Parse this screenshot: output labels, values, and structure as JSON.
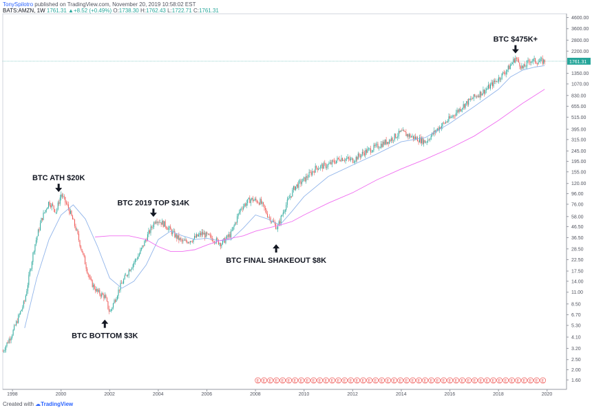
{
  "header": {
    "author": "TonySpilotro",
    "published": "published on TradingView.com, November 20, 2019 10:58:02 EST",
    "symbol": "BATS:AMZN, 1W",
    "last": "1761.31",
    "change_arrow": "▲",
    "change": "+8.52 (+0.49%)",
    "o_label": "O:",
    "o_val": "1738.30",
    "h_label": "H:",
    "h_val": "1762.43",
    "l_label": "L:",
    "l_val": "1722.71",
    "c_label": "C:",
    "c_val": "1761.31"
  },
  "footer": {
    "created": "Created with",
    "brand": "TradingView"
  },
  "colors": {
    "up": "#26a69a",
    "down": "#ef5350",
    "ma_fast": "#90b4ea",
    "ma_slow": "#f06cf0",
    "price_line": "#26a69a"
  },
  "chart_data": {
    "type": "line",
    "title": "",
    "xlabel": "",
    "ylabel": "",
    "log_scale": true,
    "ylim": [
      1.3,
      5000
    ],
    "xlim": [
      1997.6,
      2020.8
    ],
    "x_ticks": [
      "1998",
      "2000",
      "2002",
      "2004",
      "2006",
      "2008",
      "2010",
      "2012",
      "2014",
      "2016",
      "2018",
      "2020"
    ],
    "y_ticks": [
      "4600.00",
      "3600.00",
      "2800.00",
      "2200.00",
      "1761.31",
      "1350.00",
      "1070.00",
      "830.00",
      "655.00",
      "515.00",
      "395.00",
      "315.00",
      "245.00",
      "195.00",
      "155.00",
      "120.00",
      "96.00",
      "76.00",
      "58.00",
      "46.50",
      "36.50",
      "28.50",
      "22.50",
      "17.50",
      "14.00",
      "11.00",
      "8.50",
      "6.70",
      "5.30",
      "4.10",
      "3.20",
      "2.50",
      "2.00",
      "1.60"
    ],
    "current_price": 1761.31,
    "current_price_label": "1761.31",
    "series": [
      {
        "values_x": [
          1997.6,
          1998.0,
          1998.5,
          1998.9,
          1999.2,
          1999.5,
          1999.8,
          2000.0,
          2000.3,
          2000.6,
          2000.9,
          2001.2,
          2001.5,
          2001.8,
          2002.0,
          2002.4,
          2002.8,
          2003.2,
          2003.6,
          2003.9,
          2004.3,
          2004.7,
          2005.0,
          2005.4,
          2005.8,
          2006.2,
          2006.6,
          2007.0,
          2007.4,
          2007.8,
          2008.2,
          2008.5,
          2008.9,
          2009.2,
          2009.6,
          2010.0,
          2010.5,
          2011.0,
          2011.5,
          2012.0,
          2012.5,
          2013.0,
          2013.5,
          2014.0,
          2014.5,
          2015.0,
          2015.5,
          2016.0,
          2016.5,
          2017.0,
          2017.5,
          2018.0,
          2018.4,
          2018.7,
          2019.0,
          2019.3,
          2019.6,
          2019.9
        ],
        "values": [
          3.0,
          4.5,
          9,
          30,
          55,
          80,
          65,
          95,
          70,
          45,
          25,
          14,
          11,
          10,
          7,
          12,
          18,
          25,
          40,
          55,
          48,
          38,
          33,
          35,
          40,
          36,
          32,
          40,
          70,
          85,
          80,
          60,
          45,
          70,
          110,
          130,
          170,
          180,
          210,
          200,
          240,
          270,
          310,
          370,
          330,
          300,
          400,
          500,
          650,
          800,
          950,
          1200,
          1500,
          1900,
          1500,
          1800,
          1750,
          1761.31
        ]
      },
      {
        "values_x": [
          1998.5,
          1999.0,
          1999.5,
          2000.0,
          2000.5,
          2001.0,
          2001.5,
          2002.0,
          2002.5,
          2003.0,
          2003.5,
          2004.0,
          2004.5,
          2005.0,
          2005.5,
          2006.0,
          2006.5,
          2007.0,
          2007.5,
          2008.0,
          2008.5,
          2009.0,
          2009.5,
          2010.0,
          2011.0,
          2012.0,
          2013.0,
          2014.0,
          2015.0,
          2016.0,
          2017.0,
          2018.0,
          2018.5,
          2019.0,
          2019.5,
          2019.9
        ],
        "values": [
          5,
          15,
          35,
          60,
          75,
          55,
          30,
          15,
          12,
          14,
          20,
          35,
          42,
          38,
          35,
          36,
          34,
          35,
          45,
          60,
          55,
          48,
          65,
          90,
          140,
          180,
          230,
          300,
          330,
          450,
          650,
          950,
          1250,
          1450,
          1550,
          1600
        ]
      },
      {
        "values_x": [
          2001.4,
          2002.0,
          2002.8,
          2003.5,
          2004.0,
          2004.5,
          2005.0,
          2005.5,
          2006.0,
          2006.5,
          2007.0,
          2007.5,
          2008.0,
          2008.5,
          2009.0,
          2009.5,
          2010.0,
          2011.0,
          2012.0,
          2013.0,
          2014.0,
          2015.0,
          2016.0,
          2017.0,
          2018.0,
          2018.5,
          2019.0,
          2019.5,
          2019.9
        ],
        "values": [
          37,
          38,
          38,
          35,
          30,
          27,
          27,
          28,
          31,
          34,
          36,
          38,
          42,
          45,
          48,
          52,
          60,
          78,
          98,
          130,
          165,
          205,
          260,
          340,
          480,
          580,
          700,
          830,
          950
        ]
      }
    ],
    "annotations": [
      {
        "text": "BTC ATH $20K",
        "x": 1999.9,
        "y": 95,
        "arrow": "down"
      },
      {
        "text": "BTC 2019 TOP $14K",
        "x": 2003.8,
        "y": 55,
        "arrow": "down"
      },
      {
        "text": "BTC BOTTOM $3K",
        "x": 2001.8,
        "y": 6.3,
        "arrow": "up"
      },
      {
        "text": "BTC FINAL SHAKEOUT $8K",
        "x": 2008.85,
        "y": 33,
        "arrow": "up"
      },
      {
        "text": "BTC $475K+",
        "x": 2018.7,
        "y": 2000,
        "arrow": "down"
      }
    ],
    "earnings_marker_label": "E",
    "grid": false,
    "legend": "none"
  }
}
